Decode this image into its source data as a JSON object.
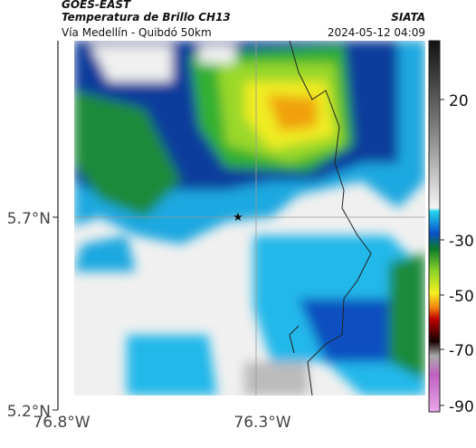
{
  "header": {
    "title": "GOES-EAST",
    "subtitle": "Temperatura de Brillo CH13",
    "location": "Vía Medellín - Quibdó 50km",
    "source": "SIATA",
    "datetime": "2024-05-12 04:09"
  },
  "axes": {
    "lat_labels": [
      "5.7°N",
      "5.2°N"
    ],
    "lon_labels": [
      "76.8°W",
      "76.3°W"
    ]
  },
  "colorbar": {
    "tick_labels": [
      "20",
      "-30",
      "-50",
      "-70",
      "-90"
    ]
  }
}
